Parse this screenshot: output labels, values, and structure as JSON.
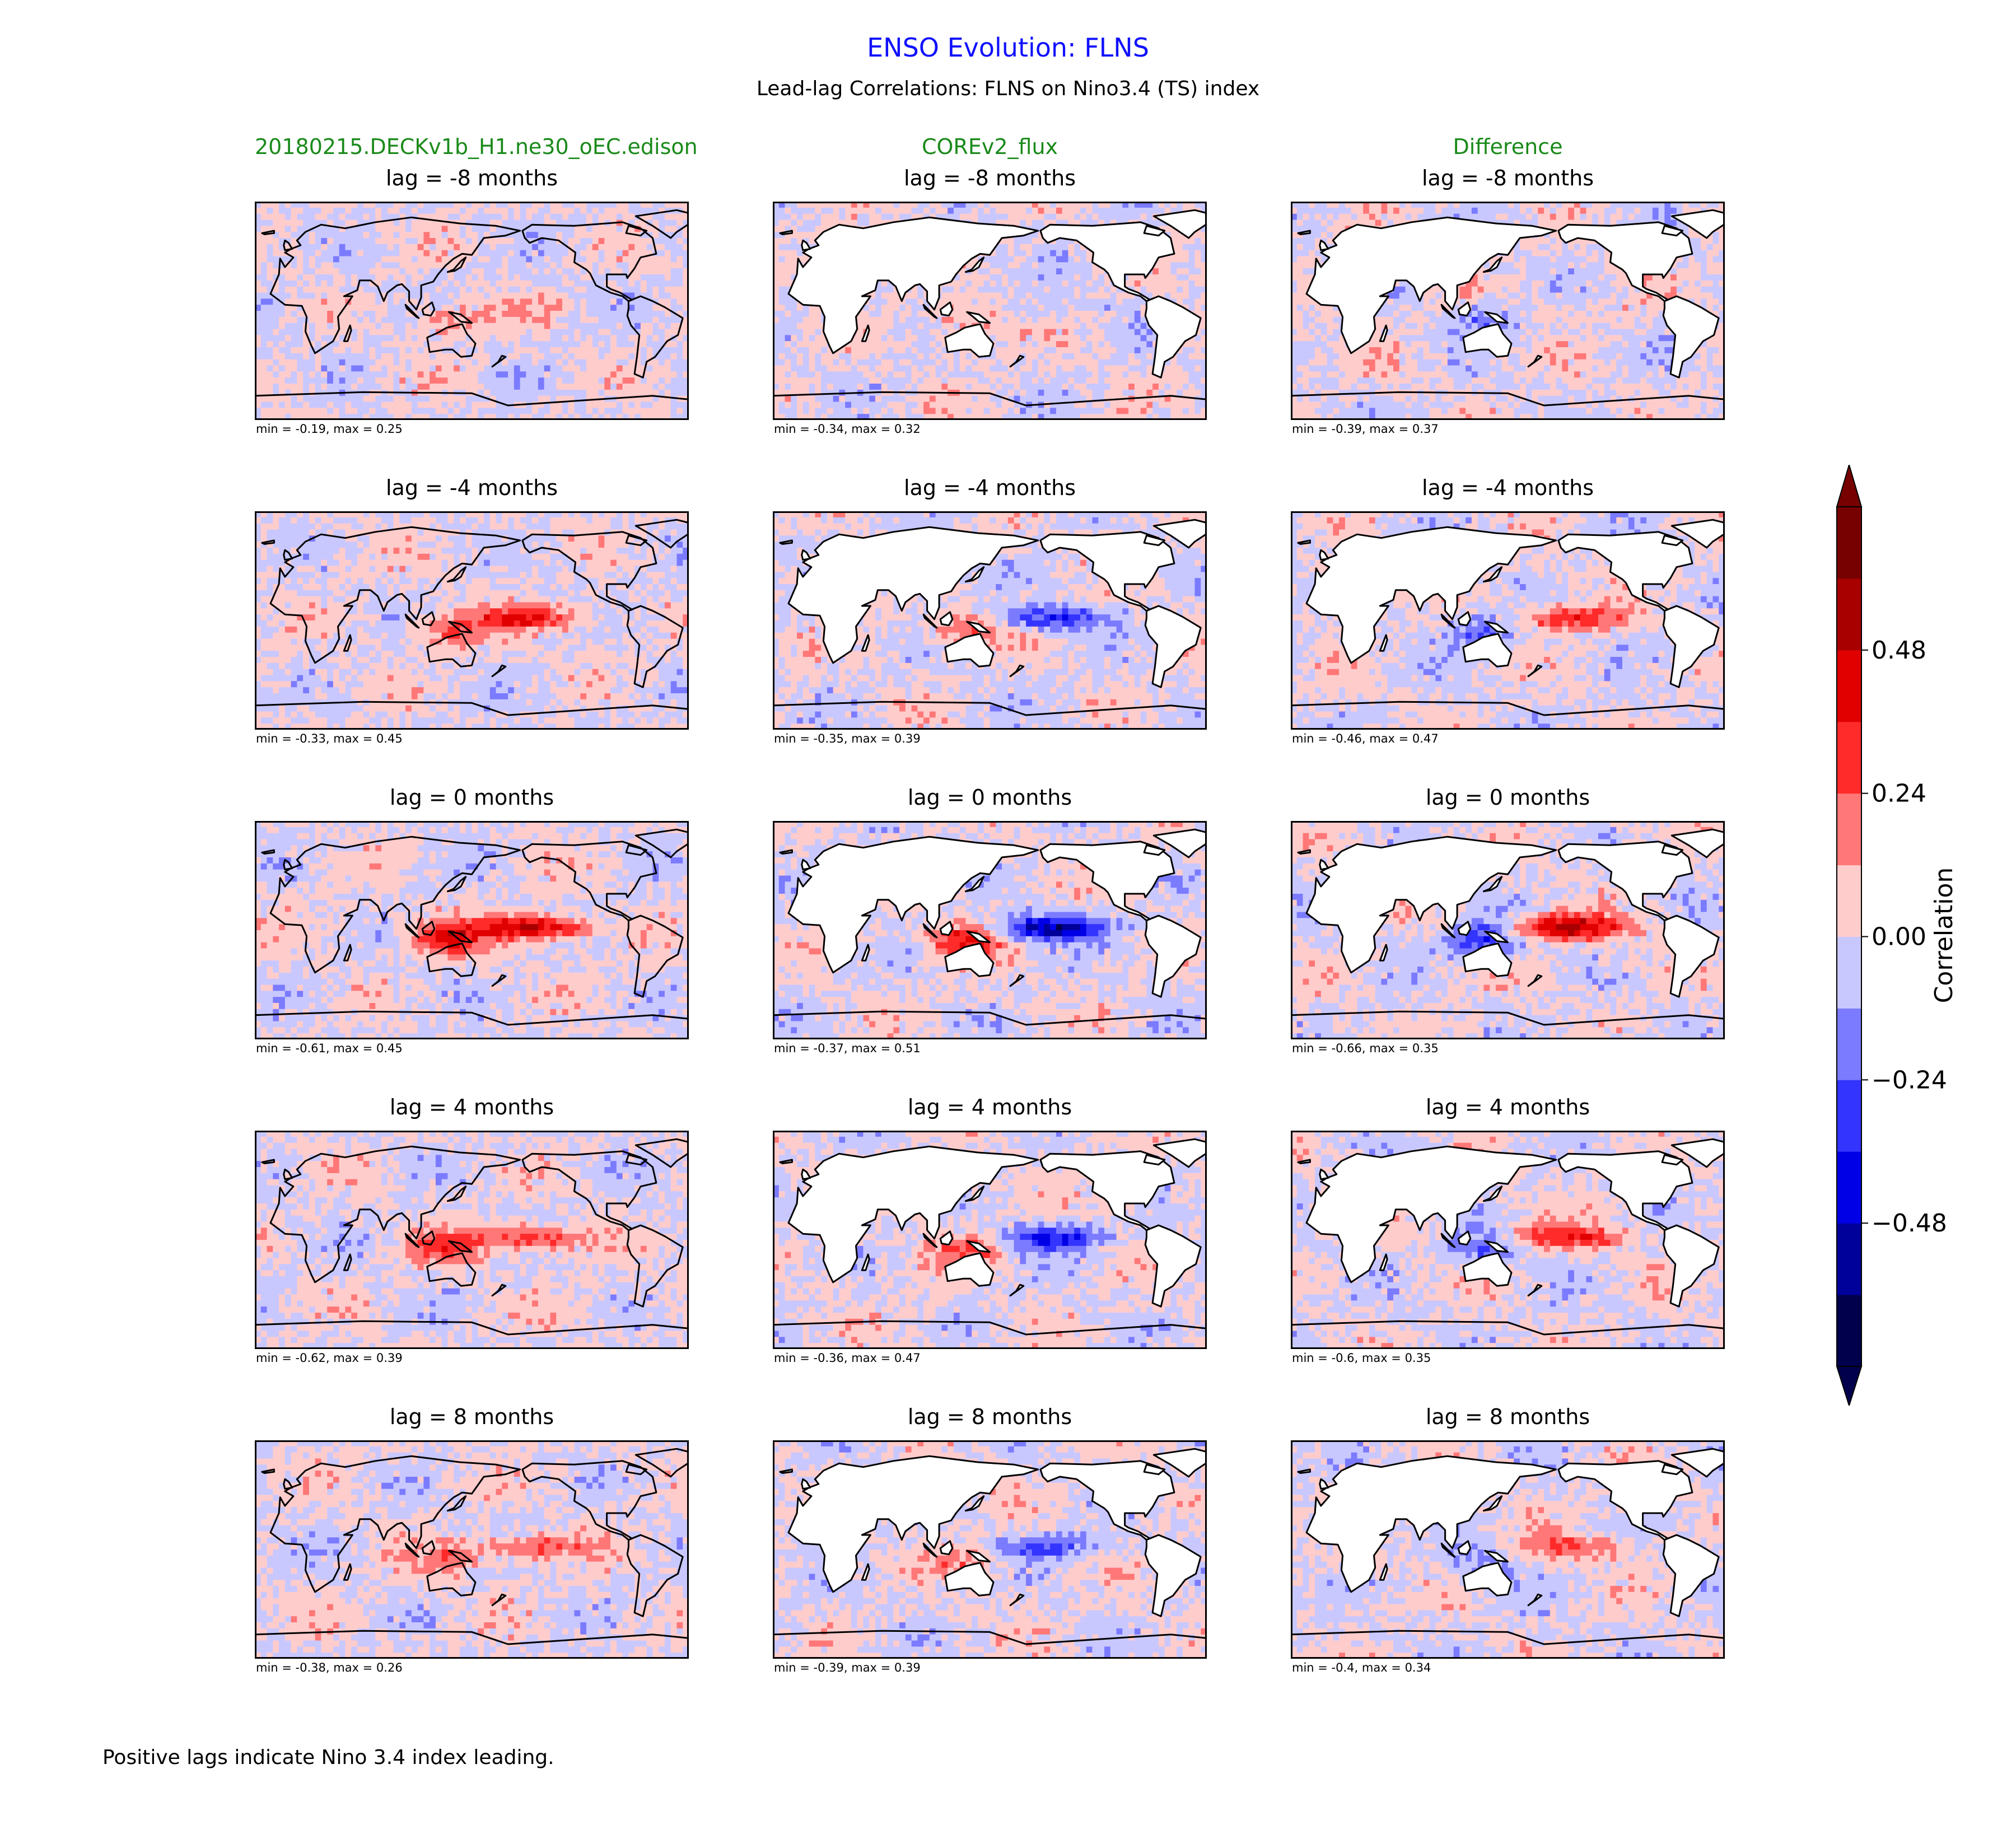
{
  "title": "ENSO Evolution: FLNS",
  "subtitle": "Lead-lag Correlations: FLNS on Nino3.4 (TS) index",
  "columns": [
    "20180215.DECKv1b_H1.ne30_oEC.edison",
    "COREv2_flux",
    "Difference"
  ],
  "footnote": "Positive lags indicate Nino 3.4 index leading.",
  "colors": {
    "title": "#1010ff",
    "column_header": "#1a8a1a",
    "levels": [
      "#00004c",
      "#00009a",
      "#0000e6",
      "#3434ff",
      "#7b7bff",
      "#c8c8ff",
      "#ffcccc",
      "#ff7777",
      "#ff2a2a",
      "#e00000",
      "#a80000",
      "#770000"
    ]
  },
  "panels": [
    [
      {
        "title": "lag = -8 months",
        "stats": "min = -0.19, max = 0.25"
      },
      {
        "title": "lag = -8 months",
        "stats": "min = -0.34, max = 0.32"
      },
      {
        "title": "lag = -8 months",
        "stats": "min = -0.39, max = 0.37"
      }
    ],
    [
      {
        "title": "lag = -4 months",
        "stats": "min = -0.33, max = 0.45"
      },
      {
        "title": "lag = -4 months",
        "stats": "min = -0.35, max = 0.39"
      },
      {
        "title": "lag = -4 months",
        "stats": "min = -0.46, max = 0.47"
      }
    ],
    [
      {
        "title": "lag = 0 months",
        "stats": "min = -0.61, max = 0.45"
      },
      {
        "title": "lag = 0 months",
        "stats": "min = -0.37, max = 0.51"
      },
      {
        "title": "lag = 0 months",
        "stats": "min = -0.66, max = 0.35"
      }
    ],
    [
      {
        "title": "lag = 4 months",
        "stats": "min = -0.62, max = 0.39"
      },
      {
        "title": "lag = 4 months",
        "stats": "min = -0.36, max = 0.47"
      },
      {
        "title": "lag = 4 months",
        "stats": "min = -0.6, max = 0.35"
      }
    ],
    [
      {
        "title": "lag = 8 months",
        "stats": "min = -0.38, max = 0.26"
      },
      {
        "title": "lag = 8 months",
        "stats": "min = -0.39, max = 0.39"
      },
      {
        "title": "lag = 8 months",
        "stats": "min = -0.4, max = 0.34"
      }
    ]
  ],
  "chart_data": {
    "type": "heatmap",
    "title": "ENSO Evolution: FLNS",
    "subtitle": "Lead-lag Correlations: FLNS on Nino3.4 (TS) index",
    "rows": [
      "lag = -8 months",
      "lag = -4 months",
      "lag = 0 months",
      "lag = 4 months",
      "lag = 8 months"
    ],
    "columns": [
      "20180215.DECKv1b_H1.ne30_oEC.edison",
      "COREv2_flux",
      "Difference"
    ],
    "ranges": [
      [
        [
          -0.19,
          0.25
        ],
        [
          -0.34,
          0.32
        ],
        [
          -0.39,
          0.37
        ]
      ],
      [
        [
          -0.33,
          0.45
        ],
        [
          -0.35,
          0.39
        ],
        [
          -0.46,
          0.47
        ]
      ],
      [
        [
          -0.61,
          0.45
        ],
        [
          -0.37,
          0.51
        ],
        [
          -0.66,
          0.35
        ]
      ],
      [
        [
          -0.62,
          0.39
        ],
        [
          -0.36,
          0.47
        ],
        [
          -0.6,
          0.35
        ]
      ],
      [
        [
          -0.38,
          0.26
        ],
        [
          -0.39,
          0.39
        ],
        [
          -0.4,
          0.34
        ]
      ]
    ],
    "colorbar": {
      "label": "Correlation",
      "levels": [
        -0.72,
        -0.6,
        -0.48,
        -0.36,
        -0.24,
        -0.12,
        0.0,
        0.12,
        0.24,
        0.36,
        0.48,
        0.6,
        0.72
      ],
      "ticks": [
        -0.48,
        -0.24,
        0.0,
        0.24,
        0.48
      ],
      "tick_labels": [
        "−0.48",
        "−0.24",
        "0.00",
        "0.24",
        "0.48"
      ],
      "extend": "both"
    }
  }
}
